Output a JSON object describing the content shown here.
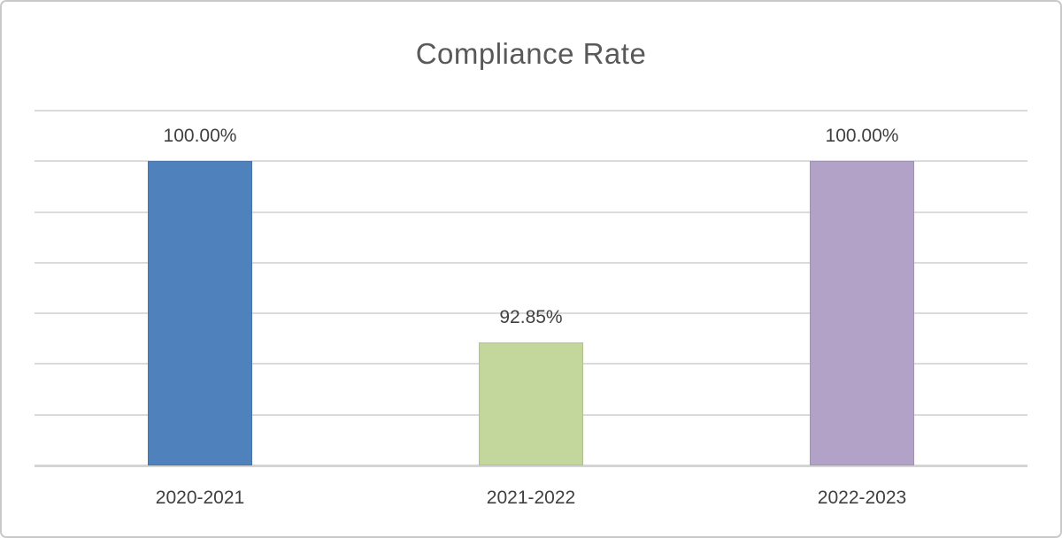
{
  "chart_data": {
    "type": "bar",
    "title": "Compliance Rate",
    "categories": [
      "2020-2021",
      "2021-2022",
      "2022-2023"
    ],
    "values": [
      100.0,
      92.85,
      100.0
    ],
    "data_labels": [
      "100.00%",
      "92.85%",
      "100.00%"
    ],
    "bar_colors": [
      "#4F81BD",
      "#C3D69B",
      "#B2A2C7"
    ],
    "xlabel": "",
    "ylabel": "",
    "ylim": [
      88,
      102
    ],
    "gridline_step": 2,
    "grid_on": true,
    "legend_position": "none",
    "y_axis_labels_visible": false,
    "colors": {
      "title_text": "#595959",
      "label_text": "#404040",
      "gridline": "#dbdbdb",
      "axis_line": "#d4d4d4",
      "frame_border": "#c8c9ca",
      "background": "#ffffff"
    }
  }
}
